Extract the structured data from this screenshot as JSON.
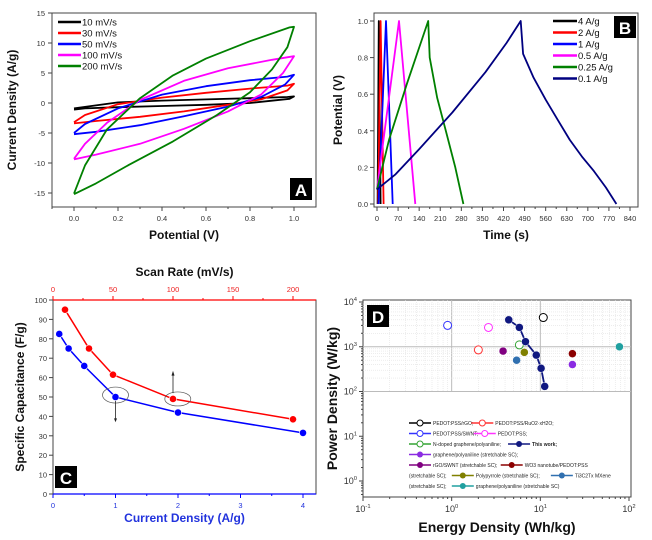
{
  "chart_data": [
    {
      "id": "A",
      "type": "line",
      "panel_label": "A",
      "title": "",
      "xlabel": "Potential (V)",
      "ylabel": "Current Density (A/g)",
      "xlim": [
        -0.1,
        1.05
      ],
      "ylim": [
        -17.5,
        15
      ],
      "xticks": [
        0.0,
        0.2,
        0.4,
        0.6,
        0.8,
        1.0
      ],
      "xtick_labels": [
        "0.0",
        "0.2",
        "0.4",
        "0.6",
        "0.8",
        "1.0"
      ],
      "yticks": [
        15,
        10,
        5,
        0,
        -5,
        -10,
        -15
      ],
      "ytick_labels": [
        "15",
        "10",
        "5",
        "0",
        "-5",
        "-10",
        "-15"
      ],
      "legend_position": "top-left",
      "series": [
        {
          "name": "10 mV/s",
          "color": "#000000",
          "upper": [
            [
              0,
              -0.9
            ],
            [
              0.2,
              0.1
            ],
            [
              0.4,
              0.4
            ],
            [
              0.6,
              0.6
            ],
            [
              0.8,
              0.8
            ],
            [
              0.97,
              1.0
            ],
            [
              1.0,
              1.1
            ]
          ],
          "lower": [
            [
              1.0,
              1.1
            ],
            [
              0.98,
              0.7
            ],
            [
              0.8,
              0.0
            ],
            [
              0.6,
              -0.3
            ],
            [
              0.4,
              -0.5
            ],
            [
              0.2,
              -0.7
            ],
            [
              0.05,
              -0.9
            ],
            [
              0,
              -1.1
            ]
          ]
        },
        {
          "name": "30 mV/s",
          "color": "#ff0000",
          "upper": [
            [
              0,
              -3.2
            ],
            [
              0.05,
              -2.0
            ],
            [
              0.2,
              -0.2
            ],
            [
              0.4,
              0.9
            ],
            [
              0.6,
              1.7
            ],
            [
              0.8,
              2.4
            ],
            [
              0.97,
              2.9
            ],
            [
              1.0,
              3.2
            ]
          ],
          "lower": [
            [
              1.0,
              3.2
            ],
            [
              0.97,
              2.1
            ],
            [
              0.85,
              0.6
            ],
            [
              0.7,
              -0.3
            ],
            [
              0.5,
              -1.4
            ],
            [
              0.3,
              -2.3
            ],
            [
              0.1,
              -3.0
            ],
            [
              0,
              -3.4
            ]
          ]
        },
        {
          "name": "50 mV/s",
          "color": "#0000ff",
          "upper": [
            [
              0,
              -5.0
            ],
            [
              0.05,
              -3.5
            ],
            [
              0.2,
              -0.9
            ],
            [
              0.4,
              1.4
            ],
            [
              0.6,
              2.8
            ],
            [
              0.8,
              3.8
            ],
            [
              0.97,
              4.4
            ],
            [
              1.0,
              4.7
            ]
          ],
          "lower": [
            [
              1.0,
              4.7
            ],
            [
              0.96,
              3.1
            ],
            [
              0.85,
              1.0
            ],
            [
              0.7,
              -0.6
            ],
            [
              0.5,
              -2.2
            ],
            [
              0.3,
              -3.7
            ],
            [
              0.1,
              -4.8
            ],
            [
              0,
              -5.2
            ]
          ]
        },
        {
          "name": "100 mV/s",
          "color": "#ff00ff",
          "upper": [
            [
              0,
              -9.3
            ],
            [
              0.05,
              -6.8
            ],
            [
              0.15,
              -3.3
            ],
            [
              0.3,
              0.5
            ],
            [
              0.5,
              3.7
            ],
            [
              0.7,
              5.8
            ],
            [
              0.9,
              7.2
            ],
            [
              1.0,
              7.8
            ]
          ],
          "lower": [
            [
              1.0,
              7.8
            ],
            [
              0.95,
              5.0
            ],
            [
              0.85,
              1.4
            ],
            [
              0.7,
              -1.4
            ],
            [
              0.5,
              -4.3
            ],
            [
              0.3,
              -6.8
            ],
            [
              0.1,
              -8.6
            ],
            [
              0,
              -9.4
            ]
          ]
        },
        {
          "name": "200 mV/s",
          "color": "#008000",
          "upper": [
            [
              0,
              -15.1
            ],
            [
              0.05,
              -10.4
            ],
            [
              0.15,
              -4.4
            ],
            [
              0.3,
              0.8
            ],
            [
              0.45,
              4.6
            ],
            [
              0.6,
              7.4
            ],
            [
              0.8,
              10.3
            ],
            [
              0.98,
              12.6
            ],
            [
              1.0,
              12.7
            ]
          ],
          "lower": [
            [
              1.0,
              12.7
            ],
            [
              0.97,
              9.3
            ],
            [
              0.9,
              5.6
            ],
            [
              0.8,
              1.8
            ],
            [
              0.65,
              -2.0
            ],
            [
              0.45,
              -6.4
            ],
            [
              0.25,
              -10.3
            ],
            [
              0.1,
              -13.4
            ],
            [
              0,
              -15.2
            ]
          ]
        }
      ]
    },
    {
      "id": "B",
      "type": "line",
      "panel_label": "B",
      "title": "",
      "xlabel": "Time (s)",
      "ylabel": "Potential (V)",
      "xlim": [
        -10,
        860
      ],
      "ylim": [
        -0.02,
        1.05
      ],
      "xticks": [
        0,
        70,
        140,
        210,
        280,
        350,
        420,
        490,
        560,
        630,
        700,
        770,
        840
      ],
      "xtick_labels": [
        "0",
        "70",
        "140",
        "210",
        "280",
        "350",
        "420",
        "490",
        "560",
        "630",
        "700",
        "770",
        "840"
      ],
      "yticks": [
        0.0,
        0.2,
        0.4,
        0.6,
        0.8,
        1.0
      ],
      "ytick_labels": [
        "0.0",
        "0.2",
        "0.4",
        "0.6",
        "0.8",
        "1.0"
      ],
      "legend_position": "top-right",
      "series": [
        {
          "name": "4 A/g",
          "color": "#000000",
          "points": [
            [
              2,
              0
            ],
            [
              6,
              1.0
            ],
            [
              12,
              0
            ]
          ]
        },
        {
          "name": "2 A/g",
          "color": "#ff0000",
          "points": [
            [
              4,
              0
            ],
            [
              12,
              1.0
            ],
            [
              22,
              0
            ]
          ]
        },
        {
          "name": "1 A/g",
          "color": "#0000ff",
          "points": [
            [
              5,
              0
            ],
            [
              30,
              1.0
            ],
            [
              52,
              0
            ]
          ]
        },
        {
          "name": "0.5 A/g",
          "color": "#ff00ff",
          "points": [
            [
              0,
              0.08
            ],
            [
              73,
              1.0
            ],
            [
              127,
              0
            ]
          ]
        },
        {
          "name": "0.25 A/g",
          "color": "#008000",
          "points": [
            [
              0,
              0.08
            ],
            [
              40,
              0.35
            ],
            [
              100,
              0.66
            ],
            [
              170,
              1.0
            ],
            [
              175,
              0.8
            ],
            [
              200,
              0.58
            ],
            [
              230,
              0.39
            ],
            [
              260,
              0.2
            ],
            [
              287,
              0
            ]
          ]
        },
        {
          "name": "0.1 A/g",
          "color": "#000080",
          "points": [
            [
              0,
              0.08
            ],
            [
              60,
              0.16
            ],
            [
              140,
              0.3
            ],
            [
              250,
              0.5
            ],
            [
              360,
              0.72
            ],
            [
              430,
              0.88
            ],
            [
              477,
              1.0
            ],
            [
              485,
              0.82
            ],
            [
              520,
              0.69
            ],
            [
              560,
              0.57
            ],
            [
              600,
              0.46
            ],
            [
              640,
              0.35
            ],
            [
              680,
              0.26
            ],
            [
              720,
              0.18
            ],
            [
              760,
              0.09
            ],
            [
              795,
              0
            ]
          ]
        }
      ]
    },
    {
      "id": "C",
      "type": "line",
      "panel_label": "C",
      "title": "",
      "xlabel": "Current Density (A/g)",
      "ylabel": "Specific Capacitance (F/g)",
      "x2label": "Scan Rate (mV/s)",
      "xlim": [
        0,
        4.2
      ],
      "x2lim": [
        0,
        220
      ],
      "ylim": [
        0,
        100
      ],
      "xticks": [
        0,
        1,
        2,
        3,
        4
      ],
      "xtick_labels": [
        "0",
        "1",
        "2",
        "3",
        "4"
      ],
      "x2ticks": [
        0,
        50,
        100,
        150,
        200
      ],
      "x2tick_labels": [
        "0",
        "50",
        "100",
        "150",
        "200"
      ],
      "yticks": [
        0,
        10,
        20,
        30,
        40,
        50,
        60,
        70,
        80,
        90,
        100
      ],
      "ytick_labels": [
        "0",
        "10",
        "20",
        "30",
        "40",
        "50",
        "60",
        "70",
        "80",
        "90",
        "100"
      ],
      "series": [
        {
          "name": "Scan Rate",
          "axis": "top",
          "color": "#ff0000",
          "x": [
            10,
            30,
            50,
            100,
            200
          ],
          "values": [
            95,
            75,
            61.5,
            49,
            38.5
          ]
        },
        {
          "name": "Current Density",
          "axis": "bottom",
          "color": "#0000ff",
          "x": [
            0.1,
            0.25,
            0.5,
            1,
            2,
            4
          ],
          "values": [
            82.5,
            75,
            66,
            50,
            42,
            31.5
          ]
        }
      ]
    },
    {
      "id": "D",
      "type": "scatter",
      "panel_label": "D",
      "title": "",
      "xlabel": "Energy Density (Wh/kg)",
      "ylabel": "Power Density (W/kg)",
      "xscale": "log",
      "yscale": "log",
      "xlim": [
        0.1,
        100
      ],
      "ylim": [
        0.5,
        10000
      ],
      "xtick_labels": [
        "10-1",
        "100",
        "101",
        "102"
      ],
      "ytick_labels": [
        "100",
        "101",
        "102",
        "103",
        "104"
      ],
      "grid": true,
      "legend_position": "bottom-center",
      "series": [
        {
          "name": "PEDOT:PSS/rGO;",
          "color": "#000000",
          "marker": "open",
          "points": [
            [
              10.8,
              4500
            ]
          ]
        },
        {
          "name": "PEDOT:PSS/RuO2·xH2O;",
          "color": "#ff3333",
          "marker": "open",
          "points": [
            [
              2.0,
              850
            ]
          ]
        },
        {
          "name": "PEDOT:PSS/SWNT;",
          "color": "#3333ff",
          "marker": "open",
          "points": [
            [
              0.9,
              3000
            ]
          ]
        },
        {
          "name": "PEDOT:PSS;",
          "color": "#ff33ff",
          "marker": "open",
          "points": [
            [
              2.6,
              2700
            ]
          ]
        },
        {
          "name": "N-doped graphene/polyaniline;",
          "color": "#33a333",
          "marker": "open",
          "points": [
            [
              5.8,
              1100
            ]
          ]
        },
        {
          "name": "This work;",
          "color": "#101880",
          "marker": "filled-line",
          "points": [
            [
              4.4,
              4000
            ],
            [
              5.8,
              2700
            ],
            [
              6.8,
              1300
            ],
            [
              9.0,
              650
            ],
            [
              10.2,
              330
            ],
            [
              11.2,
              130
            ]
          ]
        },
        {
          "name": "graphene/polyaniline (stretchable SC);",
          "color": "#8a2be2",
          "marker": "filled",
          "points": [
            [
              23,
              400
            ]
          ]
        },
        {
          "name": "rGO/SWNT (stretchable SC);",
          "color": "#800080",
          "marker": "filled",
          "points": [
            [
              3.8,
              800
            ]
          ]
        },
        {
          "name": "WO3 nanotube/PEDOT:PSS (stretchable SC);",
          "color": "#8b0000",
          "marker": "filled",
          "points": [
            [
              23,
              700
            ]
          ]
        },
        {
          "name": "Polypyrrole (stretchable SC);",
          "color": "#808000",
          "marker": "filled",
          "points": [
            [
              6.6,
              750
            ]
          ]
        },
        {
          "name": "Ti3C2Tx MXene (stretchable SC);",
          "color": "#3070b0",
          "marker": "filled",
          "points": [
            [
              5.4,
              500
            ]
          ]
        },
        {
          "name": "graphene/polyaniline (stretchable SC)",
          "color": "#20a0a0",
          "marker": "filled",
          "points": [
            [
              78,
              1000
            ]
          ]
        }
      ],
      "legend_rows": [
        [
          {
            "label": "PEDOT:PSS/rGO;",
            "s": 0
          },
          {
            "label": "PEDOT:PSS/RuO2·xH2O;",
            "s": 1
          }
        ],
        [
          {
            "label": "PEDOT:PSS/SWNT;",
            "s": 2
          },
          {
            "label": "PEDOT:PSS;",
            "s": 3
          }
        ],
        [
          {
            "label": "N-doped graphene/polyaniline;",
            "s": 4
          },
          {
            "label": "This work;",
            "s": 5
          }
        ],
        [
          {
            "label": "graphene/polyaniline (stretchable SC);",
            "s": 6
          }
        ],
        [
          {
            "label": "rGO/SWNT (stretchable SC);",
            "s": 7
          },
          {
            "label": "WO3 nanotube/PEDOT:PSS",
            "s": 8
          }
        ],
        [
          {
            "prefix": "(stretchable SC);",
            "label": "Polypyrrole (stretchable SC);",
            "s": 9
          },
          {
            "label": "Ti3C2Tx MXene",
            "s": 10
          }
        ],
        [
          {
            "prefix": "(stretchable SC);",
            "label": "graphene/polyaniline (stretchable SC)",
            "s": 11
          }
        ]
      ]
    }
  ]
}
